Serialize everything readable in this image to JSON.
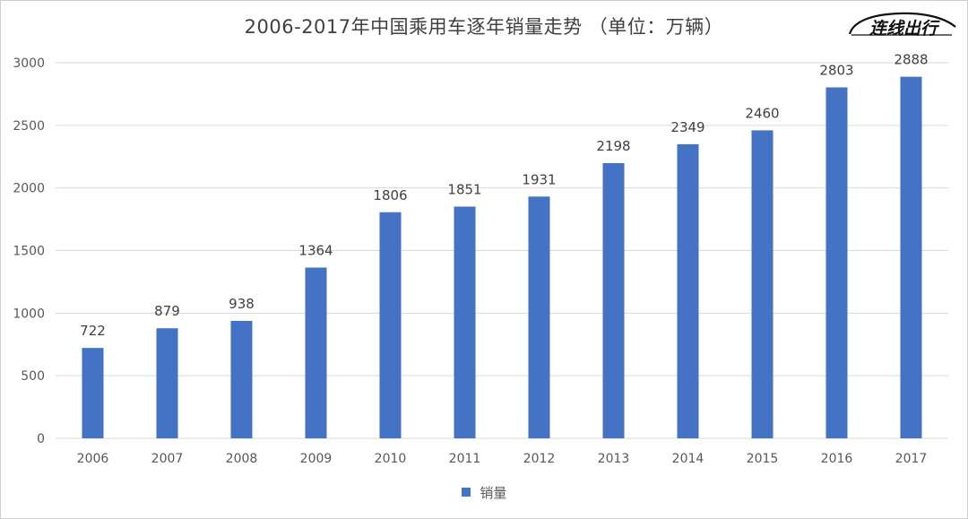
{
  "chart_data": {
    "type": "bar",
    "title": "2006-2017年中国乘用车逐年销量走势 （单位：万辆）",
    "categories": [
      "2006",
      "2007",
      "2008",
      "2009",
      "2010",
      "2011",
      "2012",
      "2013",
      "2014",
      "2015",
      "2016",
      "2017"
    ],
    "series": [
      {
        "name": "销量",
        "values": [
          722,
          879,
          938,
          1364,
          1806,
          1851,
          1931,
          2198,
          2349,
          2460,
          2803,
          2888
        ],
        "color": "#4472C4"
      }
    ],
    "ylim": [
      0,
      3000
    ],
    "yticks": [
      0,
      500,
      1000,
      1500,
      2000,
      2500,
      3000
    ],
    "grid": true,
    "legend_position": "bottom",
    "data_labels": true
  },
  "logo": {
    "text": "连线出行"
  },
  "colors": {
    "bar": "#4472C4",
    "grid": "#d9d9d9",
    "text": "#595959"
  }
}
